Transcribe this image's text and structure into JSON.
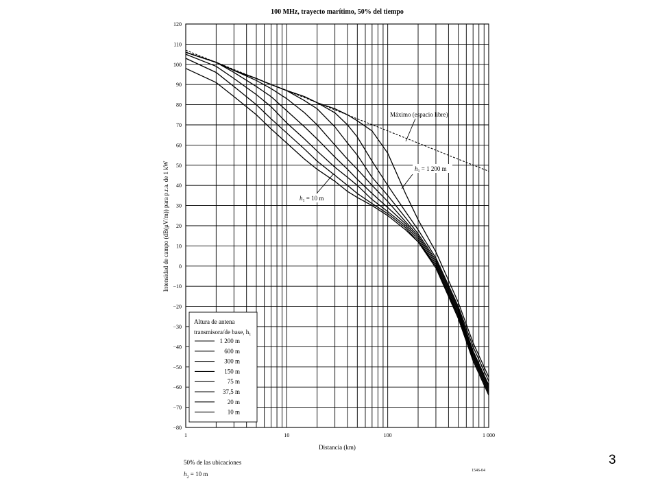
{
  "slide_number": "3",
  "footer": {
    "line1": "50% de las ubicaciones",
    "line2_sym": "h",
    "line2_sub": "2",
    "line2_rest": " = 10 m",
    "figure_id": "1546-04"
  },
  "chart_data": {
    "type": "line",
    "title": "100 MHz, trayecto marítimo, 50% del tiempo",
    "xlabel": "Distancia (km)",
    "ylabel": "Intensidad de campo (dB(μV/m)) para p.r.a. de 1 kW",
    "x_scale": "log",
    "xlim": [
      1,
      1000
    ],
    "ylim": [
      -80,
      120
    ],
    "x_tick_labels": [
      "1",
      "10",
      "100",
      "1 000"
    ],
    "y_ticks": [
      120,
      110,
      100,
      90,
      80,
      70,
      60,
      50,
      40,
      30,
      20,
      10,
      0,
      -10,
      -20,
      -30,
      -40,
      -50,
      -60,
      -70,
      -80
    ],
    "y_tick_labels": [
      "120",
      "110",
      "100",
      "90",
      "80",
      "70",
      "60",
      "50",
      "40",
      "30",
      "20",
      "10",
      "0",
      "−10",
      "−20",
      "−30",
      "−40",
      "−50",
      "−60",
      "−70",
      "−80"
    ],
    "grid": true,
    "legend": {
      "position": "bottom-left",
      "title_line1": "Altura de antena",
      "title_line2": "transmisora/de base, h",
      "title_sub": "1",
      "entries": [
        "1 200 m",
        "600 m",
        "300 m",
        "150 m",
        "75 m",
        "37,5 m",
        "20 m",
        "10 m"
      ]
    },
    "annotations": {
      "free_space": "Máximo (espacio libre)",
      "top_curve_sym": "h",
      "top_curve_sub": "1",
      "top_curve_rest": " = 1 200 m",
      "bottom_curve_sym": "h",
      "bottom_curve_sub": "1",
      "bottom_curve_rest": " = 10 m"
    },
    "free_space": {
      "x": [
        1,
        2,
        5,
        10,
        20,
        50,
        100,
        200,
        500,
        1000
      ],
      "y": [
        107,
        101,
        93,
        87,
        81,
        73,
        67,
        61,
        53,
        47
      ]
    },
    "x": [
      1,
      2,
      3,
      5,
      7,
      10,
      15,
      20,
      30,
      40,
      50,
      70,
      100,
      150,
      200,
      300,
      500,
      700,
      1000
    ],
    "series": [
      {
        "name": "1 200 m",
        "values": [
          106,
          101,
          97,
          93,
          90,
          87,
          84,
          81,
          78,
          75,
          72,
          67,
          56,
          36,
          23,
          7,
          -18,
          -38,
          -55
        ]
      },
      {
        "name": "600 m",
        "values": [
          106,
          101,
          97,
          93,
          90,
          87,
          84,
          81,
          76,
          70,
          64,
          52,
          40,
          27,
          18,
          4,
          -20,
          -40,
          -57
        ]
      },
      {
        "name": "300 m",
        "values": [
          106,
          101,
          97,
          93,
          90,
          87,
          82,
          78,
          69,
          61,
          55,
          44,
          35,
          24,
          16,
          3,
          -21,
          -42,
          -59
        ]
      },
      {
        "name": "150 m",
        "values": [
          106,
          101,
          97,
          92,
          88,
          83,
          76,
          70,
          60,
          53,
          48,
          40,
          32,
          22,
          15,
          2,
          -22,
          -43,
          -60
        ]
      },
      {
        "name": "75 m",
        "values": [
          106,
          101,
          96,
          89,
          84,
          77,
          69,
          63,
          54,
          48,
          43,
          36,
          29,
          21,
          14,
          1,
          -23,
          -44,
          -61
        ]
      },
      {
        "name": "37,5 m",
        "values": [
          105,
          99,
          93,
          85,
          79,
          71,
          63,
          57,
          49,
          44,
          40,
          33,
          27,
          20,
          13,
          0,
          -24,
          -45,
          -62
        ]
      },
      {
        "name": "20 m",
        "values": [
          103,
          96,
          89,
          80,
          73,
          66,
          58,
          52,
          45,
          40,
          36,
          31,
          26,
          19,
          12,
          0,
          -25,
          -46,
          -63
        ]
      },
      {
        "name": "10 m",
        "values": [
          98,
          91,
          84,
          75,
          68,
          61,
          53,
          48,
          42,
          37,
          34,
          30,
          25,
          18,
          12,
          -1,
          -26,
          -47,
          -64
        ]
      }
    ]
  }
}
